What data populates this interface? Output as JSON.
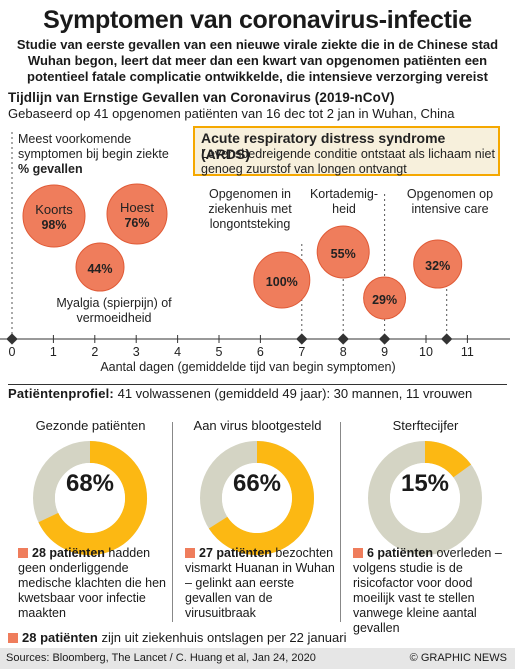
{
  "header": {
    "title": "Symptomen van coronavirus-infectie",
    "subtitle": "Studie van eerste gevallen van een nieuwe virale ziekte die in de Chinese stad Wuhan begon, leert dat meer dan een kwart van opgenomen patiënten een potentieel fatale complicatie ontwikkelde, die intensieve verzorging vereist"
  },
  "timeline_section": {
    "heading": "Tijdlijn van Ernstige Gevallen van Coronavirus (2019-nCoV)",
    "subheading": "Gebaseerd op 41 opgenomen patiënten van 16 dec tot 2 jan in Wuhan, China",
    "common_symptoms_label": "Meest voorkomende symptomen bij begin ziekte",
    "common_symptoms_unit": "% gevallen",
    "myalgia_label": "Myalgia (spierpijn) of vermoeidheid",
    "hospital_label": "Opgenomen in ziekenhuis met longontsteking",
    "dyspnea_label": "Kortademig-heid",
    "icu_label": "Opgenomen op intensive care",
    "ards_title": "Acute respiratory distress syndrome (ARDS)",
    "ards_desc": "Levensbedreigende conditie ontstaat als lichaam niet genoeg zuurstof van longen ontvangt",
    "axis_label": "Aantal dagen (gemiddelde tijd van begin symptomen)"
  },
  "chart_data": {
    "type": "scatter",
    "xlabel": "Aantal dagen (gemiddelde tijd van begin symptomen)",
    "xlim": [
      0,
      11
    ],
    "x_ticks": [
      0,
      1,
      2,
      3,
      4,
      5,
      6,
      7,
      8,
      9,
      10,
      11
    ],
    "bubbles": [
      {
        "name": "Koorts",
        "value": 98,
        "label": "98%"
      },
      {
        "name": "Hoest",
        "value": 76,
        "label": "76%"
      },
      {
        "name": "Myalgia (spierpijn) of vermoeidheid",
        "value": 44,
        "label": "44%"
      },
      {
        "name": "Opgenomen in ziekenhuis met longontsteking",
        "day": 7,
        "value": 100,
        "label": "100%"
      },
      {
        "name": "Kortademigheid",
        "day": 8,
        "value": 55,
        "label": "55%"
      },
      {
        "name": "Acute respiratory distress syndrome (ARDS)",
        "day": 9,
        "value": 29,
        "label": "29%"
      },
      {
        "name": "Opgenomen op intensive care",
        "day": 10.5,
        "value": 32,
        "label": "32%"
      }
    ],
    "marker_days": [
      0,
      7,
      8,
      9,
      10.5
    ]
  },
  "profile": {
    "heading": "Patiëntenprofiel:",
    "summary": "41 volwassenen (gemiddeld 49 jaar): 30 mannen, 11 vrouwen",
    "panels": [
      {
        "title": "Gezonde patiënten",
        "percent": 68,
        "percent_label": "68%",
        "highlight": "28 patiënten",
        "text": "hadden geen onderliggende medische klachten die hen kwetsbaar voor infectie maakten"
      },
      {
        "title": "Aan virus blootgesteld",
        "percent": 66,
        "percent_label": "66%",
        "highlight": "27 patiënten",
        "text": "bezochten vismarkt Huanan in Wuhan – gelinkt aan eerste gevallen van de virusuitbraak"
      },
      {
        "title": "Sterftecijfer",
        "percent": 15,
        "percent_label": "15%",
        "highlight": "6 patiënten",
        "text": "overleden – volgens studie is de risicofactor voor dood moeilijk vast te stellen vanwege kleine aantal gevallen"
      }
    ],
    "discharged_highlight": "28 patiënten",
    "discharged_text": "zijn uit ziekenhuis ontslagen per 22 januari"
  },
  "footer": {
    "sources": "Sources: Bloomberg, The Lancet / C. Huang et al, Jan 24, 2020",
    "credit": "© GRAPHIC NEWS"
  },
  "colors": {
    "bubble": "#ef7d5c",
    "bubble_stroke": "#e05a36",
    "donut_fill": "#fcb813",
    "donut_track": "#d4d4c4",
    "ards_border": "#f5a800",
    "dashed": "#555555"
  }
}
